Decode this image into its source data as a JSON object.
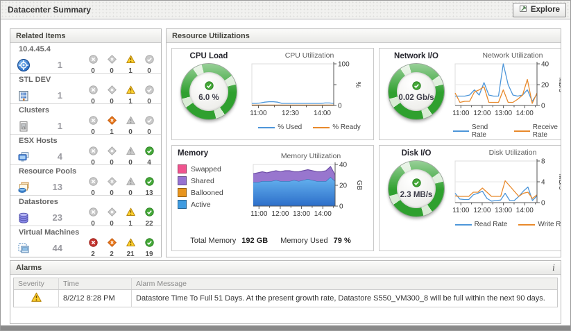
{
  "header": {
    "title": "Datacenter Summary",
    "explore_label": "Explore"
  },
  "related_items": {
    "title": "Related Items",
    "items": [
      {
        "name": "10.4.45.4",
        "icon": "vcenter",
        "count": "1",
        "statuses": [
          {
            "type": "fatal",
            "count": "0",
            "active": false
          },
          {
            "type": "critical",
            "count": "0",
            "active": false
          },
          {
            "type": "warning",
            "count": "1",
            "active": true
          },
          {
            "type": "normal",
            "count": "0",
            "active": false
          }
        ]
      },
      {
        "name": "STL DEV",
        "icon": "datacenter",
        "count": "1",
        "statuses": [
          {
            "type": "fatal",
            "count": "0",
            "active": false
          },
          {
            "type": "critical",
            "count": "0",
            "active": false
          },
          {
            "type": "warning",
            "count": "1",
            "active": true
          },
          {
            "type": "normal",
            "count": "0",
            "active": false
          }
        ]
      },
      {
        "name": "Clusters",
        "icon": "cluster",
        "count": "1",
        "statuses": [
          {
            "type": "fatal",
            "count": "0",
            "active": false
          },
          {
            "type": "critical",
            "count": "1",
            "active": true
          },
          {
            "type": "warning",
            "count": "0",
            "active": false
          },
          {
            "type": "normal",
            "count": "0",
            "active": false
          }
        ]
      },
      {
        "name": "ESX Hosts",
        "icon": "esx-host",
        "count": "4",
        "statuses": [
          {
            "type": "fatal",
            "count": "0",
            "active": false
          },
          {
            "type": "critical",
            "count": "0",
            "active": false
          },
          {
            "type": "warning",
            "count": "0",
            "active": false
          },
          {
            "type": "normal",
            "count": "4",
            "active": true
          }
        ]
      },
      {
        "name": "Resource Pools",
        "icon": "resource-pool",
        "count": "13",
        "statuses": [
          {
            "type": "fatal",
            "count": "0",
            "active": false
          },
          {
            "type": "critical",
            "count": "0",
            "active": false
          },
          {
            "type": "warning",
            "count": "0",
            "active": false
          },
          {
            "type": "normal",
            "count": "13",
            "active": true
          }
        ]
      },
      {
        "name": "Datastores",
        "icon": "datastore",
        "count": "23",
        "statuses": [
          {
            "type": "fatal",
            "count": "0",
            "active": false
          },
          {
            "type": "critical",
            "count": "0",
            "active": false
          },
          {
            "type": "warning",
            "count": "1",
            "active": true
          },
          {
            "type": "normal",
            "count": "22",
            "active": true
          }
        ]
      },
      {
        "name": "Virtual Machines",
        "icon": "vm",
        "count": "44",
        "statuses": [
          {
            "type": "fatal",
            "count": "2",
            "active": true
          },
          {
            "type": "critical",
            "count": "2",
            "active": true
          },
          {
            "type": "warning",
            "count": "21",
            "active": true
          },
          {
            "type": "normal",
            "count": "19",
            "active": true
          }
        ]
      }
    ]
  },
  "resource_utilizations": {
    "title": "Resource Utilizations",
    "cpu": {
      "title": "CPU Load",
      "gauge_value": "6.0 %"
    },
    "network": {
      "title": "Network I/O",
      "gauge_value": "0.02 Gb/s"
    },
    "memory": {
      "title": "Memory",
      "legend": [
        {
          "label": "Swapped",
          "color": "#F0548F"
        },
        {
          "label": "Shared",
          "color": "#9673D2"
        },
        {
          "label": "Ballooned",
          "color": "#E8951E"
        },
        {
          "label": "Active",
          "color": "#3F9BE0"
        }
      ],
      "stats": {
        "total_label": "Total Memory",
        "total_value": "192 GB",
        "used_label": "Memory Used",
        "used_value": "79 %"
      }
    },
    "disk": {
      "title": "Disk I/O",
      "gauge_value": "2.3 MB/s"
    },
    "status_colors": {
      "fatal": "#C43430",
      "critical": "#EA7A1E",
      "warning": "#FFD22E",
      "normal": "#44A838",
      "inactive": "#C9C9C9"
    },
    "line_colors": {
      "blue": "#4D96D9",
      "orange": "#E8892B"
    }
  },
  "alarms": {
    "title": "Alarms",
    "info_icon": "i",
    "columns": [
      "Severity",
      "Time",
      "Alarm Message"
    ],
    "rows": [
      {
        "severity": "warning",
        "time": "8/2/12 8:28 PM",
        "message": "Datastore Time To Full 51 Days. At the present growth rate, Datastore S550_VM300_8 will be full within the next 90 days."
      }
    ]
  },
  "chart_data": [
    {
      "type": "line",
      "title": "CPU Utilization",
      "ylabel": "%",
      "ylim": [
        0,
        100
      ],
      "grid": false,
      "yticks": [
        {
          "v": 0,
          "label": "0"
        },
        {
          "v": 50,
          "label": ""
        },
        {
          "v": 100,
          "label": "100"
        }
      ],
      "gridlines": [],
      "x_ticks": [
        {
          "label": "11:00",
          "pos": 0.08
        },
        {
          "label": "12:30",
          "pos": 0.47
        },
        {
          "label": "14:00",
          "pos": 0.86
        }
      ],
      "x_minor": [
        0.275,
        0.665
      ],
      "legend_position": "bottom",
      "series": [
        {
          "name": "% Used",
          "color": "#4D96D9",
          "values": [
            5,
            5,
            6,
            8,
            9,
            9,
            8,
            5,
            5,
            5,
            5,
            5,
            5,
            5,
            5,
            5,
            5,
            6,
            6,
            5
          ]
        },
        {
          "name": "% Ready",
          "color": "#E8892B",
          "values": [
            1,
            1,
            1,
            1,
            1,
            1,
            1,
            1,
            1,
            1,
            1,
            1,
            1,
            1,
            1,
            1,
            1,
            1,
            1,
            1
          ]
        }
      ]
    },
    {
      "type": "line",
      "title": "Network Utilization",
      "ylabel": "Mb/s",
      "ylim": [
        0,
        40
      ],
      "grid": true,
      "yticks": [
        {
          "v": 0,
          "label": "0"
        },
        {
          "v": 20,
          "label": "20"
        },
        {
          "v": 40,
          "label": "40"
        }
      ],
      "gridlines": [
        20
      ],
      "x_ticks": [
        {
          "label": "11:00",
          "pos": 0.07
        },
        {
          "label": "12:00",
          "pos": 0.33
        },
        {
          "label": "13:00",
          "pos": 0.59
        },
        {
          "label": "14:00",
          "pos": 0.85
        }
      ],
      "x_minor": [
        0.2,
        0.46,
        0.72,
        0.98
      ],
      "legend_position": "bottom",
      "series": [
        {
          "name": "Send Rate",
          "color": "#4D96D9",
          "values": [
            9,
            9,
            9,
            10,
            15,
            10,
            22,
            10,
            9,
            9,
            40,
            20,
            10,
            9,
            10,
            15,
            4,
            11
          ]
        },
        {
          "name": "Receive Rate",
          "color": "#E8892B",
          "values": [
            12,
            3,
            4,
            4,
            13,
            15,
            18,
            3,
            3,
            3,
            15,
            3,
            3,
            6,
            10,
            25,
            2,
            12
          ]
        }
      ]
    },
    {
      "type": "area",
      "title": "Memory Utilization",
      "ylabel": "GB",
      "ylim": [
        0,
        40
      ],
      "grid": true,
      "yticks": [
        {
          "v": 0,
          "label": "0"
        },
        {
          "v": 20,
          "label": "20"
        },
        {
          "v": 40,
          "label": "40"
        }
      ],
      "gridlines": [
        20
      ],
      "x_ticks": [
        {
          "label": "11:00",
          "pos": 0.07
        },
        {
          "label": "12:00",
          "pos": 0.33
        },
        {
          "label": "13:00",
          "pos": 0.59
        },
        {
          "label": "14:00",
          "pos": 0.85
        }
      ],
      "x_minor": [
        0.2,
        0.46,
        0.72,
        0.98
      ],
      "legend_position": "left",
      "series": [
        {
          "name": "Active",
          "color": "#3F9BE0",
          "stroke": "#3A6FB5",
          "values": [
            23,
            23,
            24,
            24,
            24,
            25,
            24,
            24,
            24,
            25,
            24,
            25,
            26,
            25,
            24,
            24,
            24,
            28,
            24
          ]
        },
        {
          "name": "Shared",
          "color": "#9876CE",
          "stroke": "#6F51A8",
          "values": [
            8,
            9,
            9,
            8,
            9,
            9,
            9,
            10,
            10,
            8,
            9,
            9,
            9,
            9,
            9,
            9,
            10,
            10,
            6
          ]
        },
        {
          "name": "Ballooned",
          "color": "#E8951E",
          "values": [
            0,
            0,
            0,
            0,
            0,
            0,
            0,
            0,
            0,
            0,
            0,
            0,
            0,
            0,
            0,
            0,
            0,
            0,
            0
          ]
        },
        {
          "name": "Swapped",
          "color": "#F0548F",
          "values": [
            0,
            0,
            0,
            0,
            0,
            0,
            0,
            0,
            0,
            0,
            0,
            0,
            0,
            0,
            0,
            0,
            0,
            0,
            0
          ]
        }
      ]
    },
    {
      "type": "line",
      "title": "Disk Utilization",
      "ylabel": "MB/s",
      "ylim": [
        0,
        8
      ],
      "grid": true,
      "yticks": [
        {
          "v": 0,
          "label": "0"
        },
        {
          "v": 4,
          "label": "4"
        },
        {
          "v": 8,
          "label": "8"
        }
      ],
      "gridlines": [
        4
      ],
      "x_ticks": [
        {
          "label": "11:00",
          "pos": 0.07
        },
        {
          "label": "12:00",
          "pos": 0.33
        },
        {
          "label": "13:00",
          "pos": 0.59
        },
        {
          "label": "14:00",
          "pos": 0.85
        }
      ],
      "x_minor": [
        0.2,
        0.46,
        0.72,
        0.98
      ],
      "legend_position": "bottom",
      "series": [
        {
          "name": "Read Rate",
          "color": "#4D96D9",
          "values": [
            1.8,
            0.7,
            0.6,
            0.6,
            1.5,
            1.8,
            2.2,
            0.8,
            0.3,
            0.4,
            0.5,
            1.8,
            0.4,
            0.4,
            1.2,
            2.2,
            3.0,
            0.4,
            1.3
          ]
        },
        {
          "name": "Write Rate",
          "color": "#E8892B",
          "values": [
            1.3,
            1.2,
            1.2,
            1.2,
            2.0,
            2.0,
            2.8,
            2.0,
            1.2,
            1.2,
            1.2,
            4.2,
            3.2,
            2.2,
            1.2,
            1.8,
            2.0,
            0.8,
            1.5
          ]
        }
      ]
    }
  ]
}
